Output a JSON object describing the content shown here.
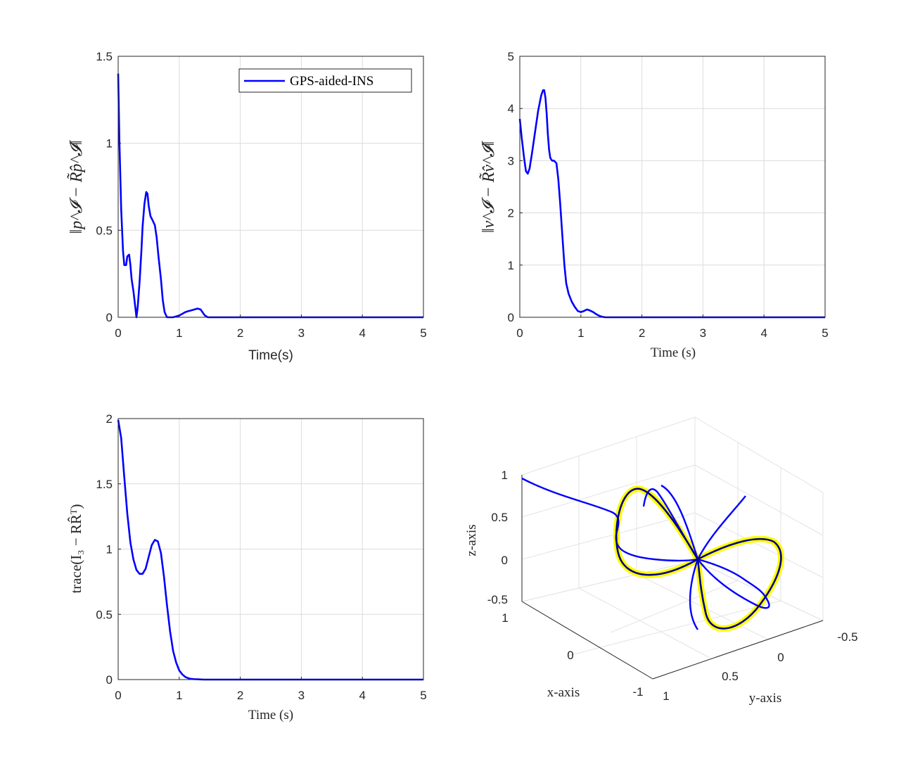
{
  "figure": {
    "background": "#ffffff"
  },
  "chart_data": [
    {
      "id": "position-error",
      "type": "line",
      "xlabel": "Time(s)",
      "ylabel": "‖p^𝓘 − R̃p̂^𝓘‖",
      "xlim": [
        0,
        5
      ],
      "ylim": [
        0,
        1.5
      ],
      "xticks": [
        "0",
        "1",
        "2",
        "3",
        "4",
        "5"
      ],
      "yticks": [
        "0",
        "0.5",
        "1",
        "1.5"
      ],
      "grid": true,
      "legend": {
        "position": "top-right",
        "entries": [
          "GPS-aided-INS"
        ]
      },
      "series": [
        {
          "name": "GPS-aided-INS",
          "color": "#0000ff",
          "x": [
            0,
            0.02,
            0.05,
            0.08,
            0.1,
            0.13,
            0.15,
            0.18,
            0.2,
            0.22,
            0.25,
            0.28,
            0.3,
            0.32,
            0.35,
            0.38,
            0.4,
            0.43,
            0.46,
            0.48,
            0.5,
            0.53,
            0.56,
            0.6,
            0.63,
            0.66,
            0.7,
            0.73,
            0.76,
            0.8,
            0.84,
            0.9,
            0.95,
            1.0,
            1.05,
            1.1,
            1.15,
            1.2,
            1.25,
            1.3,
            1.35,
            1.38,
            1.42,
            1.47,
            1.55,
            1.7,
            2.0,
            3.0,
            4.0,
            5.0
          ],
          "y": [
            1.4,
            1.02,
            0.62,
            0.38,
            0.3,
            0.3,
            0.35,
            0.36,
            0.3,
            0.22,
            0.15,
            0.06,
            0.0,
            0.06,
            0.2,
            0.38,
            0.52,
            0.65,
            0.72,
            0.71,
            0.64,
            0.58,
            0.56,
            0.53,
            0.46,
            0.35,
            0.22,
            0.1,
            0.03,
            0.0,
            0.0,
            0.0,
            0.005,
            0.01,
            0.02,
            0.03,
            0.035,
            0.04,
            0.045,
            0.05,
            0.045,
            0.03,
            0.01,
            0.0,
            0.0,
            0.0,
            0.0,
            0.0,
            0.0,
            0.0
          ]
        }
      ]
    },
    {
      "id": "velocity-error",
      "type": "line",
      "xlabel": "Time (s)",
      "ylabel": "‖v^𝓘 − R̃v̂^𝓘‖",
      "xlim": [
        0,
        5
      ],
      "ylim": [
        0,
        5
      ],
      "xticks": [
        "0",
        "1",
        "2",
        "3",
        "4",
        "5"
      ],
      "yticks": [
        "0",
        "1",
        "2",
        "3",
        "4",
        "5"
      ],
      "grid": true,
      "series": [
        {
          "color": "#0000ff",
          "x": [
            0,
            0.03,
            0.07,
            0.1,
            0.13,
            0.16,
            0.2,
            0.25,
            0.3,
            0.35,
            0.38,
            0.4,
            0.42,
            0.44,
            0.46,
            0.48,
            0.5,
            0.53,
            0.56,
            0.6,
            0.63,
            0.66,
            0.7,
            0.73,
            0.76,
            0.8,
            0.85,
            0.9,
            0.95,
            1.0,
            1.05,
            1.1,
            1.15,
            1.2,
            1.25,
            1.3,
            1.35,
            1.4,
            1.5,
            2.0,
            3.0,
            4.0,
            5.0
          ],
          "y": [
            3.8,
            3.45,
            3.05,
            2.8,
            2.75,
            2.85,
            3.15,
            3.55,
            3.95,
            4.25,
            4.35,
            4.35,
            4.2,
            3.9,
            3.5,
            3.2,
            3.05,
            3.0,
            3.0,
            2.95,
            2.65,
            2.2,
            1.5,
            1.0,
            0.65,
            0.45,
            0.3,
            0.2,
            0.12,
            0.1,
            0.12,
            0.15,
            0.13,
            0.1,
            0.06,
            0.03,
            0.01,
            0.0,
            0.0,
            0.0,
            0.0,
            0.0,
            0.0
          ]
        }
      ]
    },
    {
      "id": "attitude-error",
      "type": "line",
      "xlabel": "Time (s)",
      "ylabel": "trace(I₃ − RR̂ᵀ)",
      "xlim": [
        0,
        5
      ],
      "ylim": [
        0,
        2
      ],
      "xticks": [
        "0",
        "1",
        "2",
        "3",
        "4",
        "5"
      ],
      "yticks": [
        "0",
        "0.5",
        "1",
        "1.5",
        "2"
      ],
      "grid": true,
      "series": [
        {
          "color": "#0000ff",
          "x": [
            0,
            0.05,
            0.1,
            0.15,
            0.2,
            0.25,
            0.3,
            0.35,
            0.4,
            0.45,
            0.5,
            0.55,
            0.6,
            0.65,
            0.7,
            0.75,
            0.8,
            0.85,
            0.9,
            0.95,
            1.0,
            1.05,
            1.1,
            1.15,
            1.2,
            1.25,
            1.3,
            1.4,
            1.5,
            2.0,
            3.0,
            4.0,
            5.0
          ],
          "y": [
            1.99,
            1.85,
            1.55,
            1.27,
            1.05,
            0.92,
            0.84,
            0.81,
            0.81,
            0.85,
            0.94,
            1.03,
            1.07,
            1.06,
            0.97,
            0.79,
            0.57,
            0.37,
            0.22,
            0.13,
            0.07,
            0.04,
            0.02,
            0.01,
            0.005,
            0.003,
            0.002,
            0.0,
            0.0,
            0.0,
            0.0,
            0.0,
            0.0
          ]
        }
      ]
    },
    {
      "id": "trajectory-3d",
      "type": "line",
      "xlabel": "x-axis",
      "ylabel": "y-axis",
      "zlabel": "z-axis",
      "xticks": [
        "-1",
        "0",
        "1"
      ],
      "yticks": [
        "-0.5",
        "0",
        "0.5",
        "1"
      ],
      "zticks": [
        "-0.5",
        "0",
        "0.5",
        "1"
      ],
      "grid": true,
      "series": [
        {
          "color": "#ffff00",
          "role": "reference figure-eight trajectory"
        },
        {
          "color": "#0000ff",
          "role": "estimated trajectory"
        },
        {
          "color": "#00008b",
          "role": "true figure-eight trajectory"
        }
      ]
    }
  ]
}
